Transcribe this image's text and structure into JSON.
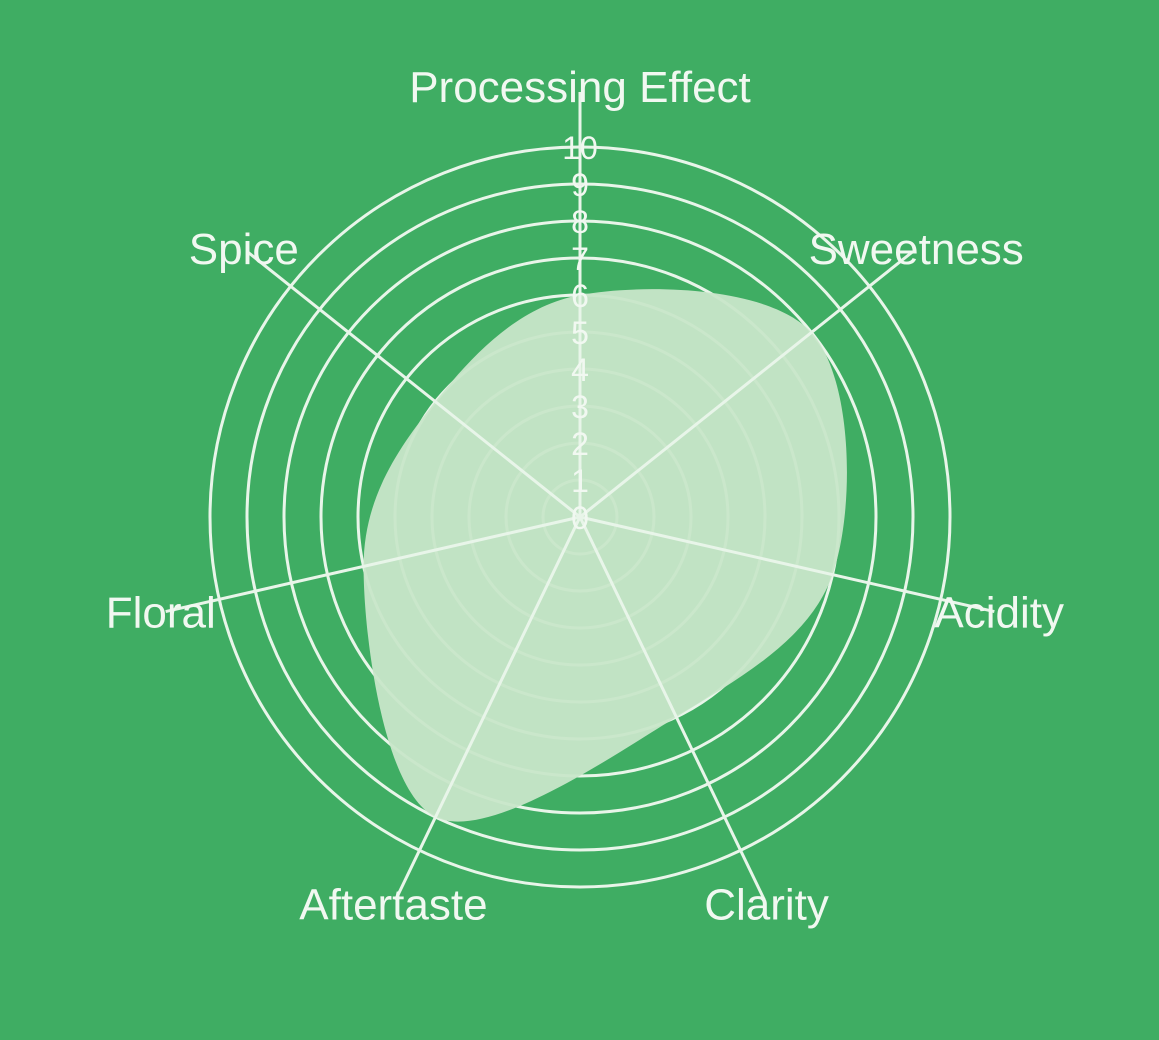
{
  "chart_data": {
    "type": "radar",
    "categories": [
      "Processing Effect",
      "Sweetness",
      "Acidity",
      "Clarity",
      "Aftertaste",
      "Floral",
      "Spice"
    ],
    "values": [
      6,
      8,
      7,
      6,
      9,
      6,
      5
    ],
    "radial_range": [
      0,
      10
    ],
    "radial_ticks": [
      "0",
      "1",
      "2",
      "3",
      "4",
      "5",
      "6",
      "7",
      "8",
      "9",
      "10"
    ],
    "grid": true,
    "smoothed": true,
    "colors": {
      "background": "#3fad63",
      "grid": "#e8f5e9",
      "fill": "#c8e6c9",
      "text": "#f1f8f1"
    }
  }
}
